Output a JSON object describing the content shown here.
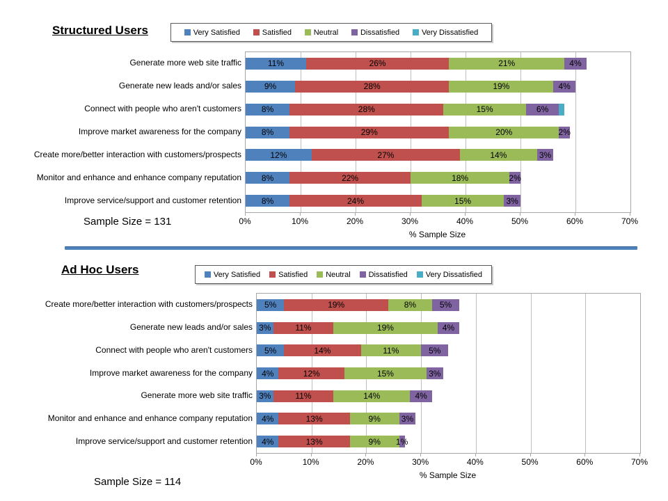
{
  "legend": {
    "items": [
      {
        "label": "Very Satisfied",
        "color": "#4F81BD"
      },
      {
        "label": "Satisfied",
        "color": "#C0504D"
      },
      {
        "label": "Neutral",
        "color": "#9BBB59"
      },
      {
        "label": "Dissatisfied",
        "color": "#8064A2"
      },
      {
        "label": "Very Dissatisfied",
        "color": "#4BACC6"
      }
    ]
  },
  "divider": {
    "color": "#4F81BD"
  },
  "chart_data": [
    {
      "type": "bar",
      "variant": "horizontal-stacked",
      "title": "Structured Users",
      "sample_size": "Sample Size = 131",
      "xlabel": "% Sample Size",
      "xlim": [
        0,
        70
      ],
      "tick_labels": [
        "0%",
        "10%",
        "20%",
        "30%",
        "40%",
        "50%",
        "60%",
        "70%"
      ],
      "series_names": [
        "Very Satisfied",
        "Satisfied",
        "Neutral",
        "Dissatisfied",
        "Very Dissatisfied"
      ],
      "categories": [
        "Generate more web site traffic",
        "Generate new leads and/or sales",
        "Connect with people who aren't customers",
        "Improve market awareness for the company",
        "Create more/better interaction with customers/prospects",
        "Monitor and enhance and enhance company reputation",
        "Improve service/support and customer retention"
      ],
      "values": [
        [
          11,
          26,
          21,
          4,
          0
        ],
        [
          9,
          28,
          19,
          4,
          0
        ],
        [
          8,
          28,
          15,
          6,
          1
        ],
        [
          8,
          29,
          20,
          2,
          0
        ],
        [
          12,
          27,
          14,
          3,
          0
        ],
        [
          8,
          22,
          18,
          2,
          0
        ],
        [
          8,
          24,
          15,
          3,
          0
        ]
      ],
      "segment_labels": [
        [
          "11%",
          "26%",
          "21%",
          "4%",
          ""
        ],
        [
          "9%",
          "28%",
          "19%",
          "4%",
          ""
        ],
        [
          "8%",
          "28%",
          "15%",
          "6%",
          ""
        ],
        [
          "8%",
          "29%",
          "20%",
          "2%",
          ""
        ],
        [
          "12%",
          "27%",
          "14%",
          "3%",
          ""
        ],
        [
          "8%",
          "22%",
          "18%",
          "2%",
          ""
        ],
        [
          "8%",
          "24%",
          "15%",
          "3%",
          ""
        ]
      ]
    },
    {
      "type": "bar",
      "variant": "horizontal-stacked",
      "title": "Ad Hoc Users",
      "sample_size": "Sample Size = 114",
      "xlabel": "% Sample Size",
      "xlim": [
        0,
        70
      ],
      "tick_labels": [
        "0%",
        "10%",
        "20%",
        "30%",
        "40%",
        "50%",
        "60%",
        "70%"
      ],
      "series_names": [
        "Very Satisfied",
        "Satisfied",
        "Neutral",
        "Dissatisfied",
        "Very Dissatisfied"
      ],
      "categories": [
        "Create more/better interaction with customers/prospects",
        "Generate new leads and/or sales",
        "Connect with people who aren't customers",
        "Improve market awareness for the company",
        "Generate more web site traffic",
        "Monitor and enhance and enhance company reputation",
        "Improve service/support and customer retention"
      ],
      "values": [
        [
          5,
          19,
          8,
          5,
          0
        ],
        [
          3,
          11,
          19,
          4,
          0
        ],
        [
          5,
          14,
          11,
          5,
          0
        ],
        [
          4,
          12,
          15,
          3,
          0
        ],
        [
          3,
          11,
          14,
          4,
          0
        ],
        [
          4,
          13,
          9,
          3,
          0
        ],
        [
          4,
          13,
          9,
          1,
          0
        ]
      ],
      "segment_labels": [
        [
          "5%",
          "19%",
          "8%",
          "5%",
          ""
        ],
        [
          "3%",
          "11%",
          "19%",
          "4%",
          ""
        ],
        [
          "5%",
          "14%",
          "11%",
          "5%",
          ""
        ],
        [
          "4%",
          "12%",
          "15%",
          "3%",
          ""
        ],
        [
          "3%",
          "11%",
          "14%",
          "4%",
          ""
        ],
        [
          "4%",
          "13%",
          "9%",
          "3%",
          ""
        ],
        [
          "4%",
          "13%",
          "9%",
          "1%",
          ""
        ]
      ]
    }
  ]
}
